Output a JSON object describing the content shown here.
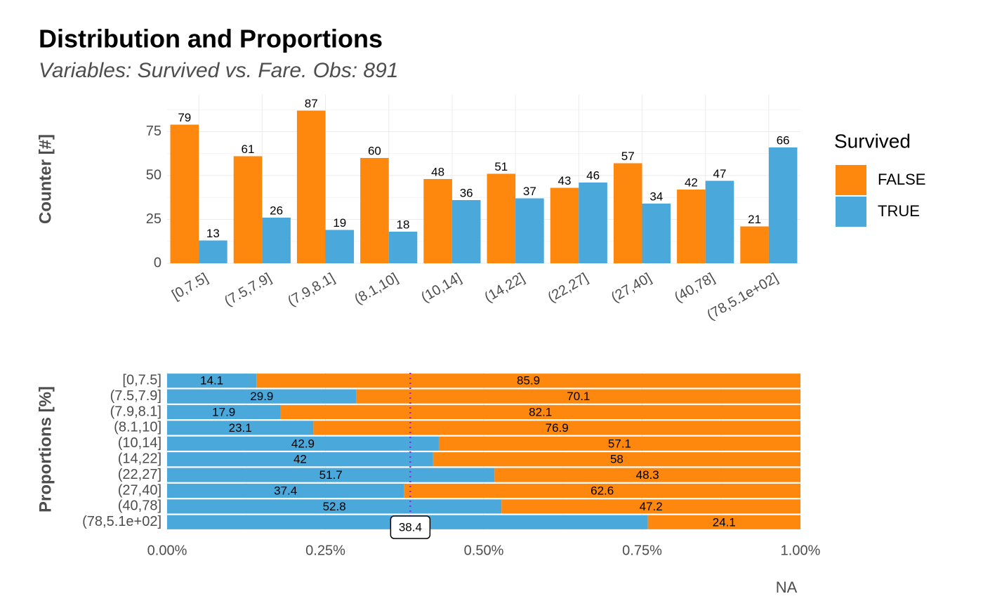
{
  "chart_data": [
    {
      "type": "bar",
      "title": "Distribution and Proportions",
      "subtitle": "Variables: Survived vs. Fare. Obs: 891",
      "ylabel": "Counter [#]",
      "categories": [
        "[0,7.5]",
        "(7.5,7.9]",
        "(7.9,8.1]",
        "(8.1,10]",
        "(10,14]",
        "(14,22]",
        "(22,27]",
        "(27,40]",
        "(40,78]",
        "(78,5.1e+02]"
      ],
      "series": [
        {
          "name": "FALSE",
          "color": "#fe870d",
          "values": [
            79,
            61,
            87,
            60,
            48,
            51,
            43,
            57,
            42,
            21
          ]
        },
        {
          "name": "TRUE",
          "color": "#4aa8db",
          "values": [
            13,
            26,
            19,
            18,
            36,
            37,
            46,
            34,
            47,
            66
          ]
        }
      ],
      "ylim": [
        0,
        96
      ],
      "yticks": [
        0,
        25,
        50,
        75
      ],
      "grid": true,
      "legend_title": "Survived",
      "legend": "right"
    },
    {
      "type": "stacked_barh",
      "ylabel": "Proportions [%]",
      "xlabel": "NA",
      "categories": [
        "[0,7.5]",
        "(7.5,7.9]",
        "(7.9,8.1]",
        "(8.1,10]",
        "(10,14]",
        "(14,22]",
        "(22,27]",
        "(27,40]",
        "(40,78]",
        "(78,5.1e+02]"
      ],
      "series": [
        {
          "color": "#4aa8db",
          "values": [
            14.1,
            29.9,
            17.9,
            23.1,
            42.9,
            42,
            51.7,
            37.4,
            52.8,
            75.9
          ]
        },
        {
          "color": "#fe870d",
          "values": [
            85.9,
            70.1,
            82.1,
            76.9,
            57.1,
            58,
            48.3,
            62.6,
            47.2,
            24.1
          ]
        }
      ],
      "xlim": [
        0,
        100
      ],
      "xticks": [
        {
          "value": 0,
          "label": "0.00%"
        },
        {
          "value": 25,
          "label": "0.25%"
        },
        {
          "value": 50,
          "label": "0.50%"
        },
        {
          "value": 75,
          "label": "0.75%"
        },
        {
          "value": 100,
          "label": "1.00%"
        }
      ],
      "grid": true,
      "reference_line": {
        "value": 38.4,
        "label": "38.4",
        "color": "#a020f0"
      }
    }
  ]
}
